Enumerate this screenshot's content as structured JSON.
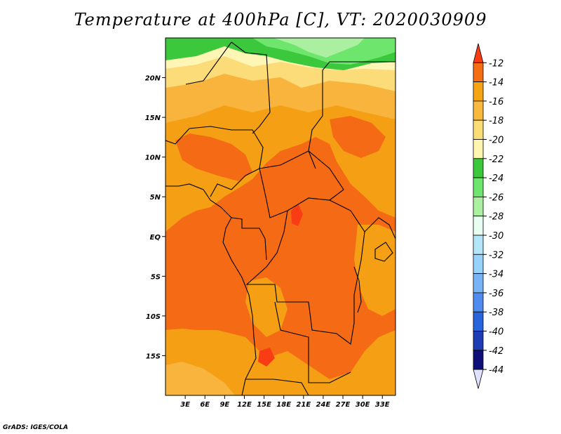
{
  "title": "Temperature at 400hPa [C], VT: 2020030909",
  "credit": "GrADS: IGES/COLA",
  "map": {
    "lon_range": [
      0,
      35
    ],
    "lat_range": [
      -20,
      25
    ],
    "lat_ticks": [
      {
        "lat": 20,
        "label": "20N"
      },
      {
        "lat": 15,
        "label": "15N"
      },
      {
        "lat": 10,
        "label": "10N"
      },
      {
        "lat": 5,
        "label": "5N"
      },
      {
        "lat": 0,
        "label": "EQ"
      },
      {
        "lat": -5,
        "label": "5S"
      },
      {
        "lat": -10,
        "label": "10S"
      },
      {
        "lat": -15,
        "label": "15S"
      }
    ],
    "lon_ticks": [
      {
        "lon": 3,
        "label": "3E"
      },
      {
        "lon": 6,
        "label": "6E"
      },
      {
        "lon": 9,
        "label": "9E"
      },
      {
        "lon": 12,
        "label": "12E"
      },
      {
        "lon": 15,
        "label": "15E"
      },
      {
        "lon": 18,
        "label": "18E"
      },
      {
        "lon": 21,
        "label": "21E"
      },
      {
        "lon": 24,
        "label": "24E"
      },
      {
        "lon": 27,
        "label": "27E"
      },
      {
        "lon": 30,
        "label": "30E"
      },
      {
        "lon": 33,
        "label": "33E"
      }
    ]
  },
  "colorbar": {
    "levels": [
      "-12",
      "-14",
      "-16",
      "-18",
      "-20",
      "-22",
      "-24",
      "-26",
      "-28",
      "-30",
      "-32",
      "-34",
      "-36",
      "-38",
      "-40",
      "-42",
      "-44"
    ],
    "colors": [
      "#fa3c14",
      "#f56e14",
      "#f5a514",
      "#f8b93c",
      "#fbdd78",
      "#fff5b0",
      "#3cc83c",
      "#6ee66e",
      "#aaf0a0",
      "#e6fff0",
      "#b4e6fa",
      "#96d2fa",
      "#78b4f5",
      "#508cf0",
      "#2864dc",
      "#1e3cb4",
      "#0f0f78",
      "#e0e0ff"
    ]
  },
  "fields": {
    "colors": {
      "c12": "#fa3c14",
      "c14": "#f56a14",
      "c16": "#f5a014",
      "c18": "#f8b43c",
      "c20": "#fbdc78",
      "c22": "#fff5b4",
      "c24": "#3cc83c",
      "c26": "#6ee66e",
      "c28": "#aaf0a0"
    }
  }
}
